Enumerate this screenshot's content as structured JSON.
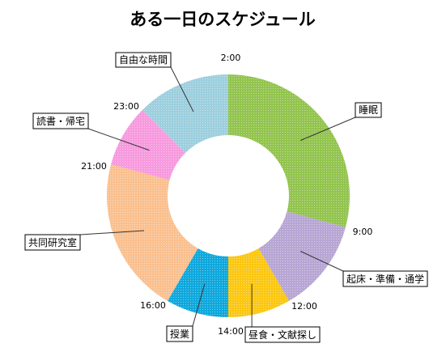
{
  "chart_data": {
    "type": "pie",
    "variant": "donut",
    "title": "ある一日のスケジュール",
    "start_time": "2:00",
    "slices": [
      {
        "label": "睡眠",
        "hours": 7,
        "color": "#93C44F"
      },
      {
        "label": "起床・準備・通学",
        "hours": 3,
        "color": "#B7A6D4"
      },
      {
        "label": "昼食・文献探し",
        "hours": 2,
        "color": "#FBC712"
      },
      {
        "label": "授業",
        "hours": 2,
        "color": "#0FA8DC"
      },
      {
        "label": "共同研究室",
        "hours": 5,
        "color": "#FAC08F"
      },
      {
        "label": "読書・帰宅",
        "hours": 2,
        "color": "#F79ADE"
      },
      {
        "label": "自由な時間",
        "hours": 3,
        "color": "#9DCFDE"
      }
    ],
    "time_ticks": [
      "2:00",
      "9:00",
      "12:00",
      "14:00",
      "16:00",
      "21:00",
      "23:00"
    ]
  }
}
